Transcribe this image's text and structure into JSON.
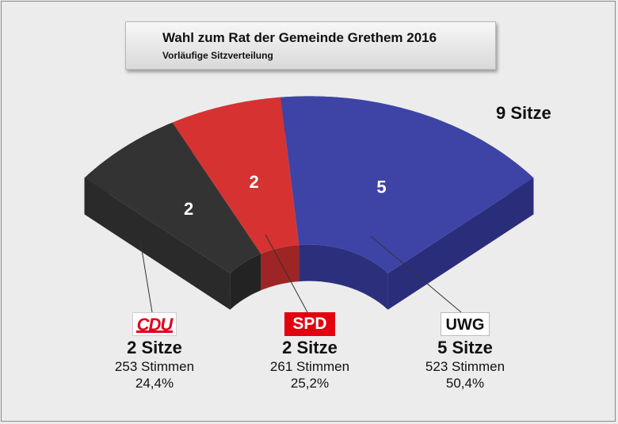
{
  "title": "Wahl zum Rat der Gemeinde Grethem 2016",
  "subtitle": "Vorläufige Sitzverteilung",
  "total_label": "9 Sitze",
  "chart_data": {
    "type": "pie",
    "variant": "3d-half-donut",
    "title": "Wahl zum Rat der Gemeinde Grethem 2016",
    "subtitle": "Vorläufige Sitzverteilung",
    "total_seats": 9,
    "categories": [
      "CDU",
      "SPD",
      "UWG"
    ],
    "values": [
      2,
      2,
      5
    ],
    "colors": [
      "#333333",
      "#d63232",
      "#3e44a6"
    ],
    "side_colors": [
      "#232323",
      "#9e2525",
      "#2c2f7c"
    ],
    "seat_labels": [
      "2",
      "2",
      "5"
    ]
  },
  "parties": [
    {
      "logo": "CDU",
      "seats": "2 Sitze",
      "votes": "253 Stimmen",
      "pct": "24,4%"
    },
    {
      "logo": "SPD",
      "seats": "2 Sitze",
      "votes": "261 Stimmen",
      "pct": "25,2%"
    },
    {
      "logo": "UWG",
      "seats": "5 Sitze",
      "votes": "523 Stimmen",
      "pct": "50,4%"
    }
  ]
}
